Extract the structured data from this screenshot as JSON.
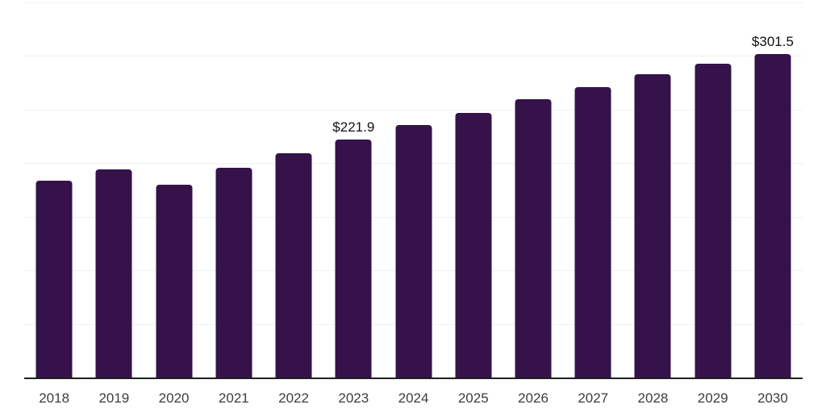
{
  "chart_data": {
    "type": "bar",
    "title": "",
    "xlabel": "",
    "ylabel": "",
    "categories": [
      "2018",
      "2019",
      "2020",
      "2021",
      "2022",
      "2023",
      "2024",
      "2025",
      "2026",
      "2027",
      "2028",
      "2029",
      "2030"
    ],
    "values": [
      184,
      194.5,
      180,
      196,
      209,
      221.9,
      235.5,
      247,
      260,
      271,
      283,
      292.5,
      301.5
    ],
    "data_labels": [
      "",
      "",
      "",
      "",
      "",
      "$221.9",
      "",
      "",
      "",
      "",
      "",
      "",
      "$301.5"
    ],
    "ylim": [
      0,
      350
    ],
    "grid_step": 50,
    "grid": "horizontal",
    "legend_position": "none",
    "colors": {
      "bar": "#351249",
      "gridline": "#f0f0f0",
      "axis_line": "#1f1f1f",
      "tick_label": "#3d3d3d",
      "data_label": "#111111",
      "background": "#ffffff"
    }
  }
}
